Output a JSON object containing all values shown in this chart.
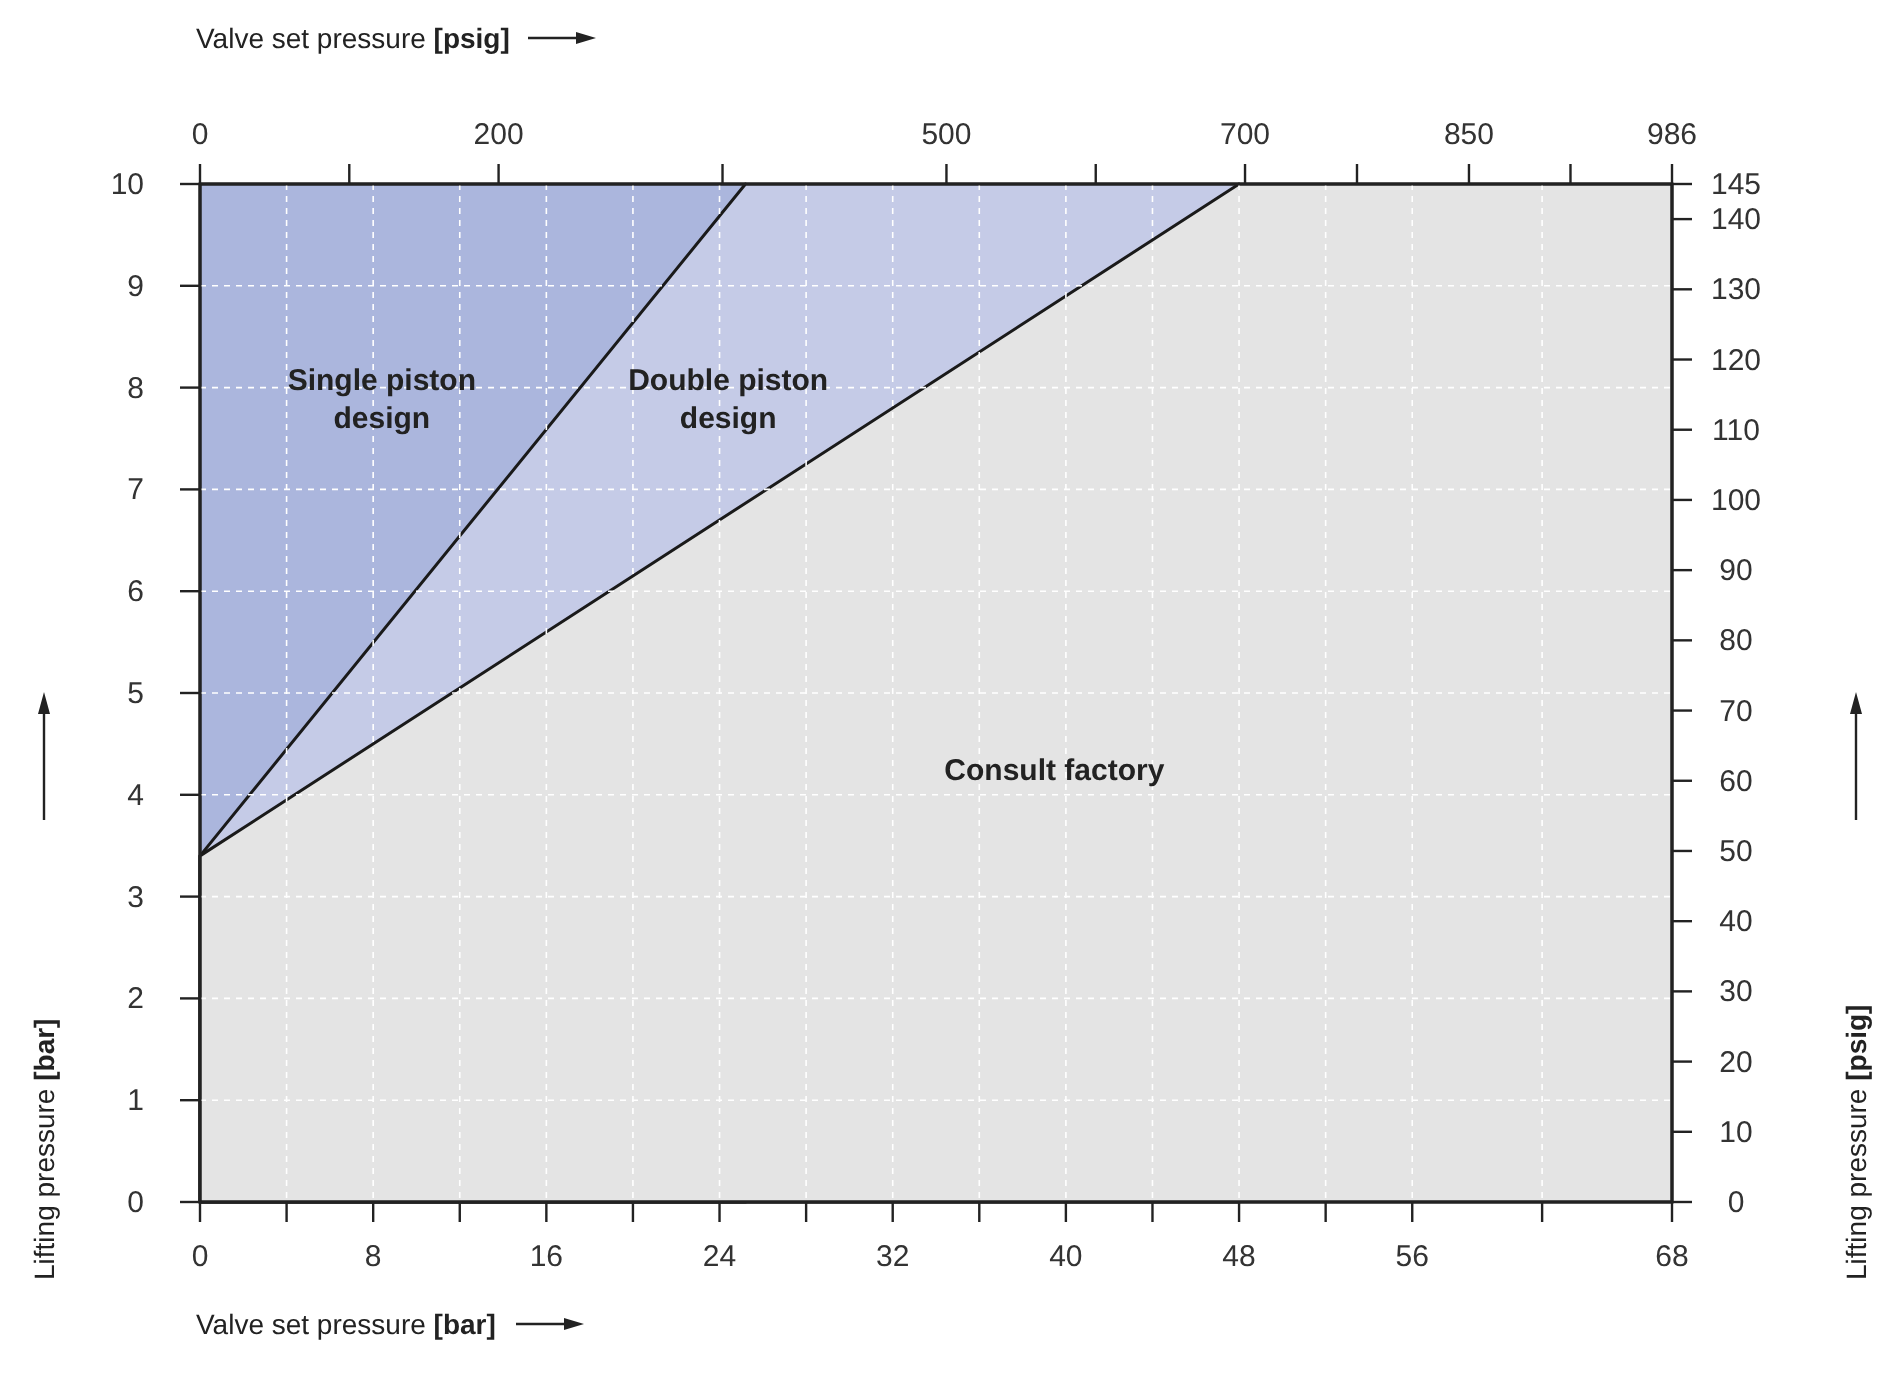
{
  "chart_data": {
    "type": "area",
    "xlabel": "Valve set pressure [bar]",
    "x2label": "Valve set pressure [psig]",
    "ylabel": "Lifting pressure [bar]",
    "y2label": "Lifting pressure [psig]",
    "xlim": [
      0,
      68
    ],
    "xticks": [
      0,
      {
        "value": 4,
        "label": null
      },
      8,
      {
        "value": 12,
        "label": null
      },
      16,
      {
        "value": 20,
        "label": null
      },
      24,
      {
        "value": 28,
        "label": null
      },
      32,
      {
        "value": 36,
        "label": null
      },
      40,
      {
        "value": 44,
        "label": null
      },
      48,
      {
        "value": 52,
        "label": null
      },
      56,
      {
        "value": 62,
        "label": null
      },
      68
    ],
    "x2lim": [
      0,
      986
    ],
    "x2ticks": [
      0,
      {
        "value": 100,
        "label": null
      },
      200,
      {
        "value": 350,
        "label": null
      },
      500,
      {
        "value": 600,
        "label": null
      },
      700,
      {
        "value": 775,
        "label": null
      },
      850,
      {
        "value": 918,
        "label": null
      },
      986
    ],
    "ylim": [
      0,
      10
    ],
    "yticks": [
      0,
      1,
      2,
      3,
      4,
      5,
      6,
      7,
      8,
      9,
      10
    ],
    "y2lim": [
      0,
      145
    ],
    "y2ticks": [
      0,
      10,
      20,
      30,
      40,
      50,
      60,
      70,
      80,
      90,
      100,
      110,
      120,
      130,
      140,
      145
    ],
    "grid": true,
    "legend": false,
    "series": [
      {
        "name": "Single piston design",
        "color": "#abb6dd",
        "x": [
          0,
          25.2
        ],
        "values": [
          10,
          10
        ]
      },
      {
        "name": "Double piston design",
        "color": "#c5cbe7",
        "x": [
          0,
          25.2,
          48
        ],
        "values": [
          3.4,
          10,
          10
        ]
      },
      {
        "name": "Consult factory",
        "color": "#e4e4e4",
        "x": [
          0,
          48,
          68
        ],
        "values": [
          3.4,
          10,
          10
        ]
      }
    ]
  }
}
